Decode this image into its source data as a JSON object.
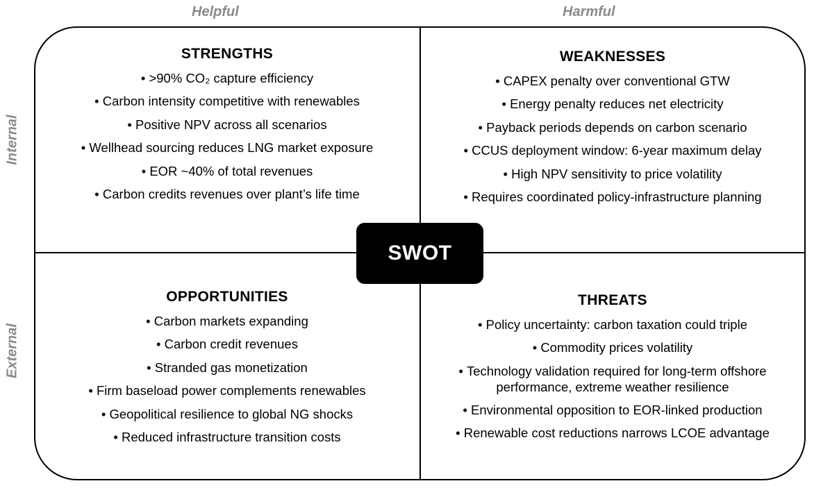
{
  "column_labels": {
    "helpful": "Helpful",
    "harmful": "Harmful"
  },
  "row_labels": {
    "internal": "Internal",
    "external": "External"
  },
  "center_label": "SWOT",
  "strengths": {
    "title": "STRENGTHS",
    "items": [
      ">90% CO₂ capture efficiency",
      "Carbon intensity competitive with renewables",
      "Positive NPV across all scenarios",
      "Wellhead sourcing reduces LNG market exposure",
      "EOR ~40% of total revenues",
      "Carbon credits revenues over plant’s life time"
    ]
  },
  "weaknesses": {
    "title": "WEAKNESSES",
    "items": [
      "CAPEX penalty over conventional GTW",
      "Energy penalty  reduces net electricity",
      "Payback periods  depends on carbon scenario",
      "CCUS deployment window: 6-year maximum delay",
      "High NPV sensitivity to price volatility",
      "Requires coordinated policy-infrastructure planning"
    ]
  },
  "opportunities": {
    "title": "OPPORTUNITIES",
    "items": [
      "Carbon markets expanding",
      "Carbon credit revenues",
      "Stranded gas monetization",
      "Firm baseload power complements  renewables",
      "Geopolitical resilience to global NG shocks",
      "Reduced infrastructure transition costs"
    ]
  },
  "threats": {
    "title": "THREATS",
    "items": [
      "Policy uncertainty: carbon taxation could triple",
      "Commodity prices volatility",
      "Technology validation required for  long-term offshore performance, extreme weather resilience",
      "Environmental opposition to EOR-linked production",
      "Renewable cost reductions narrows LCOE advantage"
    ]
  }
}
